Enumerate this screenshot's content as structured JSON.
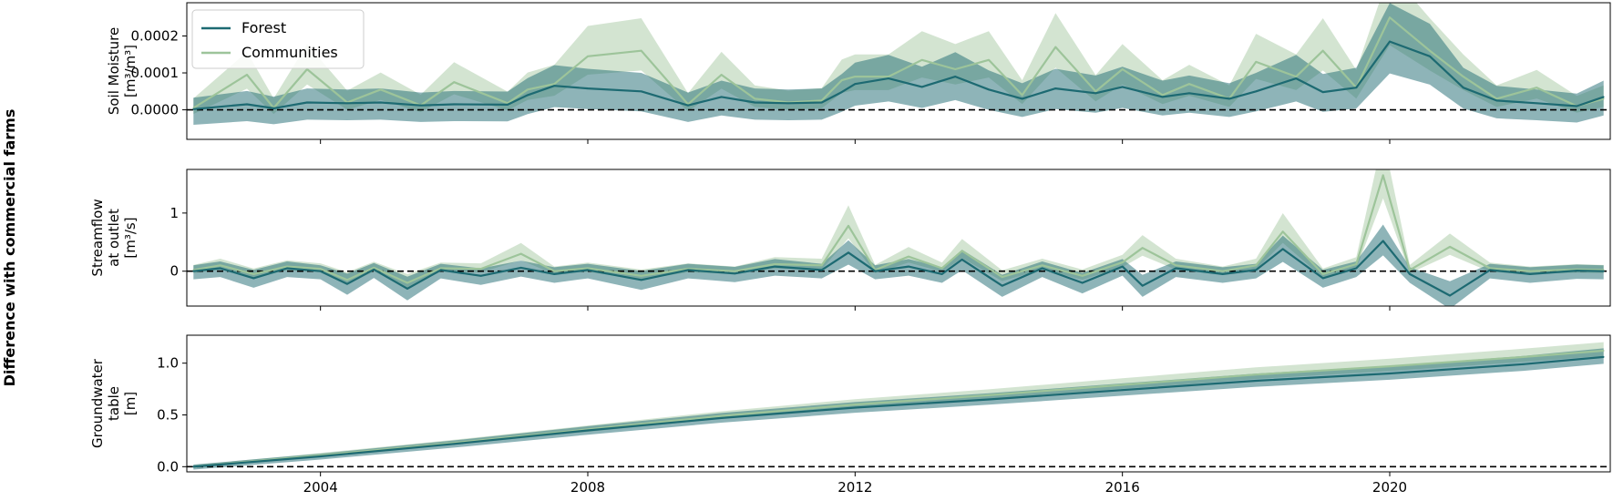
{
  "figure": {
    "side_label": "Difference with commercial farms",
    "legend": [
      {
        "label": "Forest",
        "color": "#1d6a72"
      },
      {
        "label": "Communities",
        "color": "#9dc49a"
      }
    ],
    "x_ticks": [
      "2004",
      "2008",
      "2012",
      "2016",
      "2020"
    ]
  },
  "chart_data": [
    {
      "type": "line",
      "panel": "soil-moisture",
      "ylabel_lines": [
        "Soil Moisture",
        "[m³/m³]"
      ],
      "xlim": [
        2002.0,
        2023.3
      ],
      "ylim": [
        -8e-05,
        0.00029
      ],
      "yticks": [
        0.0,
        0.0001,
        0.0002
      ],
      "ytick_labels": [
        "0.0000",
        "0.0001",
        "0.0002"
      ],
      "zero_line": true,
      "legend_position": "top-left",
      "series": [
        {
          "name": "Forest",
          "color": "#1d6a72",
          "points": [
            [
              2002.1,
              2e-06
            ],
            [
              2002.9,
              1.5e-05
            ],
            [
              2003.3,
              4e-06
            ],
            [
              2003.8,
              2e-05
            ],
            [
              2004.4,
              1.8e-05
            ],
            [
              2004.9,
              2e-05
            ],
            [
              2005.5,
              1.2e-05
            ],
            [
              2006.0,
              1.5e-05
            ],
            [
              2006.8,
              1.4e-05
            ],
            [
              2007.1,
              4e-05
            ],
            [
              2007.5,
              6.5e-05
            ],
            [
              2008.0,
              5.8e-05
            ],
            [
              2008.8,
              5e-05
            ],
            [
              2009.5,
              1.2e-05
            ],
            [
              2010.0,
              3.5e-05
            ],
            [
              2010.5,
              2e-05
            ],
            [
              2011.0,
              1.8e-05
            ],
            [
              2011.5,
              2e-05
            ],
            [
              2011.8,
              4.8e-05
            ],
            [
              2012.0,
              7e-05
            ],
            [
              2012.5,
              8.5e-05
            ],
            [
              2013.0,
              6.2e-05
            ],
            [
              2013.5,
              9e-05
            ],
            [
              2014.0,
              5.5e-05
            ],
            [
              2014.5,
              3e-05
            ],
            [
              2015.0,
              5.8e-05
            ],
            [
              2015.6,
              4.5e-05
            ],
            [
              2016.0,
              6.2e-05
            ],
            [
              2016.6,
              3.5e-05
            ],
            [
              2017.0,
              4.5e-05
            ],
            [
              2017.6,
              3e-05
            ],
            [
              2018.0,
              5e-05
            ],
            [
              2018.6,
              8.5e-05
            ],
            [
              2019.0,
              4.8e-05
            ],
            [
              2019.5,
              6e-05
            ],
            [
              2020.0,
              0.000185
            ],
            [
              2020.6,
              0.000145
            ],
            [
              2021.1,
              6e-05
            ],
            [
              2021.6,
              2.5e-05
            ],
            [
              2022.2,
              1.8e-05
            ],
            [
              2022.8,
              1e-05
            ],
            [
              2023.2,
              3.5e-05
            ]
          ]
        },
        {
          "name": "Communities",
          "color": "#9dc49a",
          "points": [
            [
              2002.1,
              5e-06
            ],
            [
              2002.9,
              9.5e-05
            ],
            [
              2003.3,
              5e-06
            ],
            [
              2003.8,
              0.00011
            ],
            [
              2004.4,
              2e-05
            ],
            [
              2004.9,
              5.5e-05
            ],
            [
              2005.5,
              1.2e-05
            ],
            [
              2006.0,
              7.5e-05
            ],
            [
              2006.8,
              1.8e-05
            ],
            [
              2007.1,
              5.5e-05
            ],
            [
              2007.5,
              7e-05
            ],
            [
              2008.0,
              0.000145
            ],
            [
              2008.8,
              0.00016
            ],
            [
              2009.5,
              1.5e-05
            ],
            [
              2010.0,
              9.5e-05
            ],
            [
              2010.5,
              3e-05
            ],
            [
              2011.0,
              2e-05
            ],
            [
              2011.5,
              2.5e-05
            ],
            [
              2011.8,
              8e-05
            ],
            [
              2012.0,
              9e-05
            ],
            [
              2012.5,
              9e-05
            ],
            [
              2013.0,
              0.000135
            ],
            [
              2013.5,
              0.00011
            ],
            [
              2014.0,
              0.000135
            ],
            [
              2014.5,
              4e-05
            ],
            [
              2015.0,
              0.00017
            ],
            [
              2015.6,
              5e-05
            ],
            [
              2016.0,
              0.00011
            ],
            [
              2016.6,
              4e-05
            ],
            [
              2017.0,
              7e-05
            ],
            [
              2017.6,
              3e-05
            ],
            [
              2018.0,
              0.00013
            ],
            [
              2018.6,
              9e-05
            ],
            [
              2019.0,
              0.00016
            ],
            [
              2019.5,
              6e-05
            ],
            [
              2020.0,
              0.00025
            ],
            [
              2020.6,
              0.00016
            ],
            [
              2021.1,
              9e-05
            ],
            [
              2021.6,
              3e-05
            ],
            [
              2022.2,
              6e-05
            ],
            [
              2022.8,
              1e-05
            ],
            [
              2023.2,
              3e-05
            ]
          ]
        }
      ]
    },
    {
      "type": "line",
      "panel": "streamflow",
      "ylabel_lines": [
        "Streamflow",
        "at outlet",
        "[m³/s]"
      ],
      "xlim": [
        2002.0,
        2023.3
      ],
      "ylim": [
        -0.6,
        1.75
      ],
      "yticks": [
        0,
        1
      ],
      "ytick_labels": [
        "0",
        "1"
      ],
      "zero_line": true,
      "series": [
        {
          "name": "Forest",
          "color": "#1d6a72",
          "points": [
            [
              2002.1,
              0.0
            ],
            [
              2002.5,
              0.05
            ],
            [
              2003.0,
              -0.12
            ],
            [
              2003.5,
              0.05
            ],
            [
              2004.0,
              0.0
            ],
            [
              2004.4,
              -0.22
            ],
            [
              2004.8,
              0.03
            ],
            [
              2005.3,
              -0.3
            ],
            [
              2005.8,
              0.02
            ],
            [
              2006.4,
              -0.08
            ],
            [
              2007.0,
              0.06
            ],
            [
              2007.5,
              -0.05
            ],
            [
              2008.0,
              0.02
            ],
            [
              2008.8,
              -0.15
            ],
            [
              2009.5,
              0.02
            ],
            [
              2010.2,
              -0.04
            ],
            [
              2010.8,
              0.08
            ],
            [
              2011.5,
              0.02
            ],
            [
              2011.9,
              0.32
            ],
            [
              2012.3,
              0.0
            ],
            [
              2012.8,
              0.08
            ],
            [
              2013.3,
              -0.05
            ],
            [
              2013.6,
              0.2
            ],
            [
              2014.2,
              -0.25
            ],
            [
              2014.8,
              0.05
            ],
            [
              2015.4,
              -0.2
            ],
            [
              2016.0,
              0.08
            ],
            [
              2016.3,
              -0.25
            ],
            [
              2016.8,
              0.05
            ],
            [
              2017.5,
              -0.05
            ],
            [
              2018.0,
              0.02
            ],
            [
              2018.4,
              0.38
            ],
            [
              2019.0,
              -0.12
            ],
            [
              2019.5,
              0.05
            ],
            [
              2019.9,
              0.52
            ],
            [
              2020.3,
              -0.05
            ],
            [
              2020.9,
              -0.42
            ],
            [
              2021.5,
              0.02
            ],
            [
              2022.1,
              -0.05
            ],
            [
              2022.8,
              0.01
            ],
            [
              2023.2,
              0.0
            ]
          ]
        },
        {
          "name": "Communities",
          "color": "#9dc49a",
          "points": [
            [
              2002.1,
              0.02
            ],
            [
              2002.5,
              0.1
            ],
            [
              2003.0,
              -0.05
            ],
            [
              2003.5,
              0.08
            ],
            [
              2004.0,
              0.04
            ],
            [
              2004.4,
              -0.15
            ],
            [
              2004.8,
              0.06
            ],
            [
              2005.3,
              -0.2
            ],
            [
              2005.8,
              0.05
            ],
            [
              2006.4,
              0.04
            ],
            [
              2007.0,
              0.3
            ],
            [
              2007.5,
              0.0
            ],
            [
              2008.0,
              0.05
            ],
            [
              2008.8,
              -0.08
            ],
            [
              2009.5,
              0.04
            ],
            [
              2010.2,
              0.0
            ],
            [
              2010.8,
              0.12
            ],
            [
              2011.5,
              0.1
            ],
            [
              2011.9,
              0.78
            ],
            [
              2012.3,
              0.02
            ],
            [
              2012.8,
              0.25
            ],
            [
              2013.3,
              0.05
            ],
            [
              2013.6,
              0.35
            ],
            [
              2014.2,
              -0.1
            ],
            [
              2014.8,
              0.1
            ],
            [
              2015.4,
              -0.08
            ],
            [
              2016.0,
              0.15
            ],
            [
              2016.3,
              0.4
            ],
            [
              2016.8,
              0.1
            ],
            [
              2017.5,
              0.0
            ],
            [
              2018.0,
              0.1
            ],
            [
              2018.4,
              0.68
            ],
            [
              2019.0,
              -0.05
            ],
            [
              2019.5,
              0.12
            ],
            [
              2019.9,
              1.65
            ],
            [
              2020.3,
              0.02
            ],
            [
              2020.9,
              0.42
            ],
            [
              2021.5,
              0.05
            ],
            [
              2022.1,
              0.0
            ],
            [
              2022.8,
              0.03
            ],
            [
              2023.2,
              0.02
            ]
          ]
        }
      ]
    },
    {
      "type": "line",
      "panel": "groundwater",
      "ylabel_lines": [
        "Groundwater",
        "table",
        "[m]"
      ],
      "xlim": [
        2002.0,
        2023.3
      ],
      "ylim": [
        -0.05,
        1.27
      ],
      "yticks": [
        0.0,
        0.5,
        1.0
      ],
      "ytick_labels": [
        "0.0",
        "0.5",
        "1.0"
      ],
      "zero_line": true,
      "series": [
        {
          "name": "Forest",
          "color": "#1d6a72",
          "points": [
            [
              2002.1,
              0.0
            ],
            [
              2004.0,
              0.1
            ],
            [
              2006.0,
              0.22
            ],
            [
              2008.0,
              0.35
            ],
            [
              2010.0,
              0.47
            ],
            [
              2012.0,
              0.57
            ],
            [
              2014.0,
              0.65
            ],
            [
              2016.0,
              0.74
            ],
            [
              2018.0,
              0.83
            ],
            [
              2020.0,
              0.9
            ],
            [
              2022.0,
              0.99
            ],
            [
              2023.2,
              1.06
            ]
          ]
        },
        {
          "name": "Communities",
          "color": "#9dc49a",
          "points": [
            [
              2002.1,
              0.0
            ],
            [
              2004.0,
              0.11
            ],
            [
              2006.0,
              0.23
            ],
            [
              2008.0,
              0.36
            ],
            [
              2010.0,
              0.49
            ],
            [
              2012.0,
              0.6
            ],
            [
              2014.0,
              0.69
            ],
            [
              2016.0,
              0.79
            ],
            [
              2018.0,
              0.89
            ],
            [
              2020.0,
              0.97
            ],
            [
              2022.0,
              1.06
            ],
            [
              2023.2,
              1.12
            ]
          ]
        }
      ]
    }
  ]
}
